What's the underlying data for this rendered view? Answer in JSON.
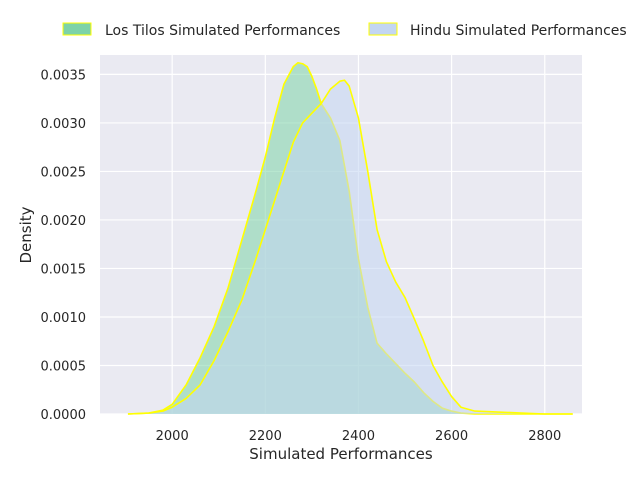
{
  "chart_data": {
    "type": "area",
    "title": "",
    "xlabel": "Simulated Performances",
    "ylabel": "Density",
    "xlim": [
      1845,
      2880
    ],
    "ylim": [
      0,
      0.0037
    ],
    "x_ticks": [
      2000,
      2200,
      2400,
      2600,
      2800
    ],
    "y_ticks": [
      0,
      0.0005,
      0.001,
      0.0015,
      0.002,
      0.0025,
      0.003,
      0.0035
    ],
    "y_tick_labels": [
      "0.0000",
      "0.0005",
      "0.0010",
      "0.0015",
      "0.0020",
      "0.0025",
      "0.0030",
      "0.0035"
    ],
    "grid": true,
    "legend_position": "top",
    "series": [
      {
        "name": "Los Tilos Simulated Performances",
        "fill": "#7dd3a8",
        "edge": "#ffff00",
        "x": [
          1905,
          1950,
          1980,
          2000,
          2030,
          2060,
          2090,
          2120,
          2150,
          2180,
          2200,
          2220,
          2240,
          2260,
          2270,
          2280,
          2290,
          2300,
          2310,
          2320,
          2340,
          2360,
          2380,
          2400,
          2420,
          2440,
          2460,
          2480,
          2500,
          2520,
          2540,
          2560,
          2580,
          2600,
          2620,
          2650,
          2700,
          2750,
          2800,
          2860
        ],
        "y": [
          0.0,
          1e-05,
          4e-05,
          0.0001,
          0.0003,
          0.00058,
          0.0009,
          0.0013,
          0.0018,
          0.0023,
          0.00265,
          0.00305,
          0.0034,
          0.00358,
          0.00362,
          0.00361,
          0.00358,
          0.00348,
          0.00335,
          0.0032,
          0.00305,
          0.00282,
          0.0023,
          0.0016,
          0.0011,
          0.00073,
          0.00062,
          0.00052,
          0.00042,
          0.00033,
          0.00022,
          0.00013,
          6e-05,
          3e-05,
          1e-05,
          0.0,
          0.0,
          0.0,
          0.0,
          0.0
        ]
      },
      {
        "name": "Hindu Simulated Performances",
        "fill": "#c3d6f2",
        "edge": "#ffff00",
        "x": [
          1905,
          1950,
          1980,
          2000,
          2030,
          2060,
          2090,
          2120,
          2150,
          2180,
          2200,
          2220,
          2240,
          2260,
          2280,
          2300,
          2320,
          2340,
          2360,
          2370,
          2380,
          2400,
          2420,
          2440,
          2460,
          2480,
          2500,
          2520,
          2540,
          2560,
          2580,
          2600,
          2620,
          2650,
          2700,
          2750,
          2800,
          2860
        ],
        "y": [
          0.0,
          1e-05,
          3e-05,
          7e-05,
          0.00016,
          0.0003,
          0.00055,
          0.00085,
          0.00118,
          0.0016,
          0.0019,
          0.0022,
          0.0025,
          0.0028,
          0.003,
          0.0031,
          0.0032,
          0.00335,
          0.00343,
          0.00344,
          0.00338,
          0.00305,
          0.0025,
          0.0019,
          0.00157,
          0.00136,
          0.0012,
          0.00098,
          0.00075,
          0.0005,
          0.00033,
          0.00018,
          7e-05,
          3e-05,
          2e-05,
          1e-05,
          0.0,
          0.0
        ]
      }
    ]
  }
}
